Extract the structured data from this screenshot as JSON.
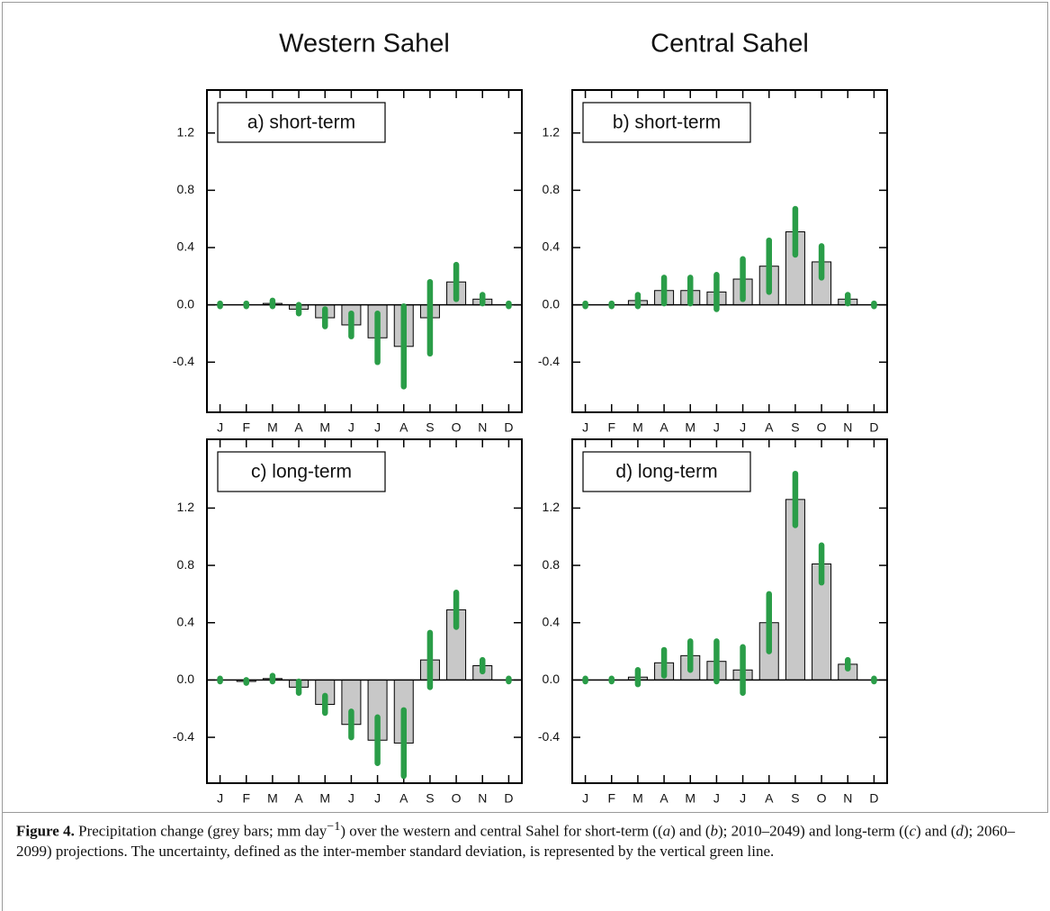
{
  "column_titles": [
    "Western Sahel",
    "Central Sahel"
  ],
  "chart_data": [
    {
      "type": "bar",
      "panel_label": "a) short-term",
      "categories": [
        "J",
        "F",
        "M",
        "A",
        "M",
        "J",
        "J",
        "A",
        "S",
        "O",
        "N",
        "D"
      ],
      "values": [
        0,
        0,
        0.01,
        -0.03,
        -0.09,
        -0.14,
        -0.23,
        -0.29,
        -0.09,
        0.16,
        0.04,
        0
      ],
      "errors": [
        0.01,
        0.01,
        0.02,
        0.03,
        0.06,
        0.08,
        0.17,
        0.28,
        0.25,
        0.12,
        0.03,
        0.01
      ],
      "color": "#c8c8c8",
      "error_color": "#2a9d48",
      "ylim": [
        -0.75,
        1.5
      ],
      "yticks": [
        -0.4,
        {
          "value": 0,
          "label": "0.0"
        },
        0.4,
        0.8,
        1.2
      ]
    },
    {
      "type": "bar",
      "panel_label": "b) short-term",
      "categories": [
        "J",
        "F",
        "M",
        "A",
        "M",
        "J",
        "J",
        "A",
        "S",
        "O",
        "N",
        "D"
      ],
      "values": [
        0,
        0,
        0.03,
        0.1,
        0.1,
        0.09,
        0.18,
        0.27,
        0.51,
        0.3,
        0.04,
        0
      ],
      "errors": [
        0.01,
        0.01,
        0.04,
        0.09,
        0.09,
        0.12,
        0.14,
        0.18,
        0.16,
        0.11,
        0.03,
        0.01
      ],
      "color": "#c8c8c8",
      "error_color": "#2a9d48",
      "ylim": [
        -0.75,
        1.5
      ],
      "yticks": [
        -0.4,
        {
          "value": 0,
          "label": "0.0"
        },
        0.4,
        0.8,
        1.2
      ]
    },
    {
      "type": "bar",
      "panel_label": "c) long-term",
      "categories": [
        "J",
        "F",
        "M",
        "A",
        "M",
        "J",
        "J",
        "A",
        "S",
        "O",
        "N",
        "D"
      ],
      "values": [
        0,
        -0.01,
        0.01,
        -0.05,
        -0.17,
        -0.31,
        -0.42,
        -0.44,
        0.14,
        0.49,
        0.1,
        0
      ],
      "errors": [
        0.01,
        0.01,
        0.02,
        0.04,
        0.06,
        0.09,
        0.16,
        0.23,
        0.19,
        0.12,
        0.04,
        0.01
      ],
      "color": "#c8c8c8",
      "error_color": "#2a9d48",
      "ylim": [
        -0.72,
        1.68
      ],
      "yticks": [
        -0.4,
        {
          "value": 0,
          "label": "0.0"
        },
        0.4,
        0.8,
        1.2
      ]
    },
    {
      "type": "bar",
      "panel_label": "d) long-term",
      "categories": [
        "J",
        "F",
        "M",
        "A",
        "M",
        "J",
        "J",
        "A",
        "S",
        "O",
        "N",
        "D"
      ],
      "values": [
        0,
        0,
        0.02,
        0.12,
        0.17,
        0.13,
        0.07,
        0.4,
        1.26,
        0.81,
        0.11,
        0
      ],
      "errors": [
        0.01,
        0.01,
        0.05,
        0.09,
        0.1,
        0.14,
        0.16,
        0.2,
        0.18,
        0.13,
        0.03,
        0.01
      ],
      "color": "#c8c8c8",
      "error_color": "#2a9d48",
      "ylim": [
        -0.72,
        1.68
      ],
      "yticks": [
        -0.4,
        {
          "value": 0,
          "label": "0.0"
        },
        0.4,
        0.8,
        1.2
      ]
    }
  ],
  "caption": {
    "label": "Figure 4.",
    "segments": [
      "Precipitation change (grey bars; mm day",
      "−1",
      ") over the western and central Sahel for short-term ((",
      "a",
      ") and (",
      "b",
      "); 2010–2049) and long-term ((",
      "c",
      ") and (",
      "d",
      "); 2060–2099) projections. The uncertainty, defined as the inter-member standard deviation, is represented by the vertical green line."
    ]
  }
}
